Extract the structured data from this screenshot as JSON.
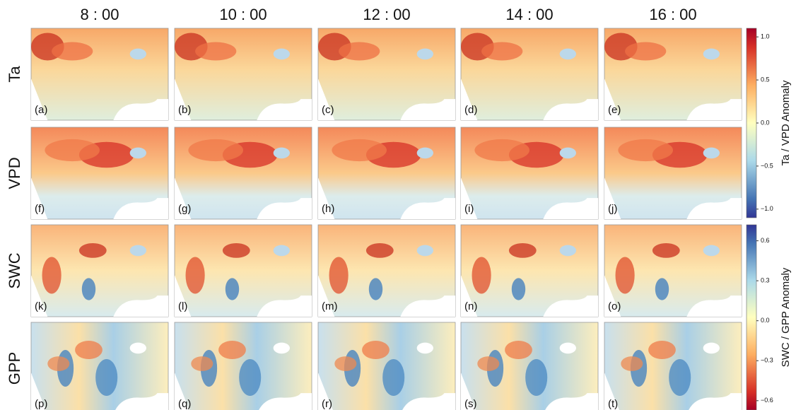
{
  "columns": [
    "8 : 00",
    "10 : 00",
    "12 : 00",
    "14 : 00",
    "16 : 00"
  ],
  "rows": [
    "Ta",
    "VPD",
    "SWC",
    "GPP"
  ],
  "panels": [
    "(a)",
    "(b)",
    "(c)",
    "(d)",
    "(e)",
    "(f)",
    "(g)",
    "(h)",
    "(i)",
    "(j)",
    "(k)",
    "(l)",
    "(m)",
    "(n)",
    "(o)",
    "(p)",
    "(q)",
    "(r)",
    "(s)",
    "(t)"
  ],
  "colorbars": [
    {
      "label": "Ta / VPD Anomaly",
      "colormap": "RdYlBu_r",
      "ylim": [
        -1.1,
        1.1
      ],
      "yticks": [
        {
          "value": -1,
          "label": "−1.0"
        },
        {
          "value": -0.5,
          "label": "−0.5"
        },
        {
          "value": 0,
          "label": "0.0"
        },
        0.5,
        {
          "value": 1,
          "label": "1.0"
        }
      ]
    },
    {
      "label": "SWC / GPP Anomaly",
      "colormap": "RdYlBu",
      "ylim": [
        -0.67,
        0.72
      ],
      "yticks": [
        {
          "value": -0.6,
          "label": "−0.6"
        },
        {
          "value": -0.3,
          "label": "−0.3"
        },
        {
          "value": 0,
          "label": "0.0"
        },
        0.3,
        0.6
      ]
    }
  ]
}
